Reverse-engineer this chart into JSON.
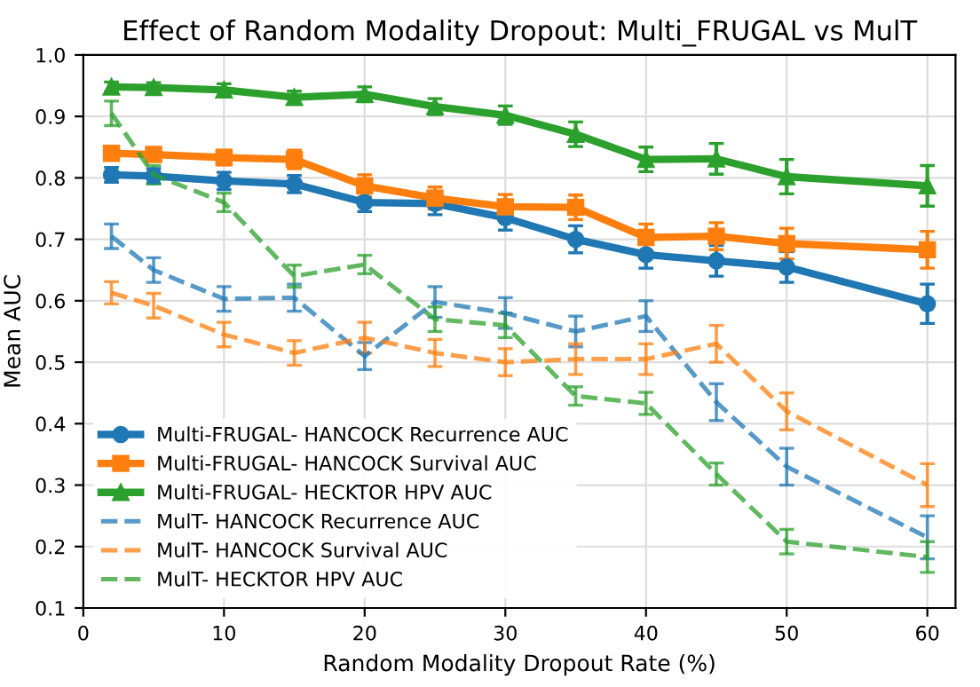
{
  "chart_data": {
    "type": "line",
    "title": "Effect of Random Modality Dropout: Multi_FRUGAL vs MulT",
    "xlabel": "Random Modality Dropout Rate (%)",
    "ylabel": "Mean AUC",
    "x": [
      2,
      5,
      10,
      15,
      20,
      25,
      30,
      35,
      40,
      45,
      50,
      60
    ],
    "series": [
      {
        "name": "Multi-FRUGAL- HANCOCK Recurrence AUC",
        "color": "#1f77b4",
        "marker": "circle",
        "line_style": "solid",
        "values": [
          0.805,
          0.803,
          0.795,
          0.79,
          0.76,
          0.758,
          0.735,
          0.7,
          0.675,
          0.665,
          0.655,
          0.595
        ],
        "errors": [
          0.012,
          0.012,
          0.014,
          0.014,
          0.015,
          0.018,
          0.02,
          0.022,
          0.022,
          0.025,
          0.025,
          0.032
        ]
      },
      {
        "name": "Multi-FRUGAL- HANCOCK Survival AUC",
        "color": "#ff7f0e",
        "marker": "square",
        "line_style": "solid",
        "values": [
          0.84,
          0.838,
          0.833,
          0.83,
          0.787,
          0.767,
          0.753,
          0.752,
          0.703,
          0.705,
          0.693,
          0.683
        ],
        "errors": [
          0.01,
          0.01,
          0.012,
          0.015,
          0.018,
          0.018,
          0.02,
          0.02,
          0.022,
          0.022,
          0.025,
          0.03
        ]
      },
      {
        "name": "Multi-FRUGAL- HECKTOR HPV AUC",
        "color": "#2ca02c",
        "marker": "triangle",
        "line_style": "solid",
        "values": [
          0.948,
          0.947,
          0.943,
          0.931,
          0.936,
          0.916,
          0.902,
          0.871,
          0.83,
          0.831,
          0.802,
          0.787
        ],
        "errors": [
          0.008,
          0.008,
          0.01,
          0.01,
          0.012,
          0.013,
          0.015,
          0.02,
          0.02,
          0.025,
          0.028,
          0.033
        ]
      },
      {
        "name": "MulT- HANCOCK Recurrence AUC",
        "color": "#1f77b4",
        "marker": "none",
        "line_style": "dashed",
        "values": [
          0.705,
          0.65,
          0.603,
          0.605,
          0.51,
          0.598,
          0.58,
          0.55,
          0.575,
          0.435,
          0.33,
          0.215
        ],
        "errors": [
          0.02,
          0.02,
          0.02,
          0.022,
          0.022,
          0.025,
          0.025,
          0.025,
          0.025,
          0.03,
          0.03,
          0.035
        ]
      },
      {
        "name": "MulT- HANCOCK Survival AUC",
        "color": "#ff7f0e",
        "marker": "none",
        "line_style": "dashed",
        "values": [
          0.613,
          0.592,
          0.545,
          0.515,
          0.54,
          0.515,
          0.5,
          0.505,
          0.505,
          0.53,
          0.42,
          0.3
        ],
        "errors": [
          0.018,
          0.02,
          0.02,
          0.02,
          0.025,
          0.022,
          0.022,
          0.025,
          0.025,
          0.03,
          0.03,
          0.035
        ]
      },
      {
        "name": "MulT- HECKTOR HPV AUC",
        "color": "#2ca02c",
        "marker": "none",
        "line_style": "dashed",
        "values": [
          0.905,
          0.805,
          0.76,
          0.64,
          0.659,
          0.57,
          0.56,
          0.445,
          0.433,
          0.318,
          0.208,
          0.183
        ],
        "errors": [
          0.02,
          0.015,
          0.015,
          0.018,
          0.015,
          0.02,
          0.02,
          0.015,
          0.018,
          0.018,
          0.02,
          0.025
        ]
      }
    ],
    "xlim": [
      0,
      62
    ],
    "xticks": [
      0,
      10,
      20,
      30,
      40,
      50,
      60
    ],
    "ylim": [
      0.1,
      1.0
    ],
    "yticks": [
      0.1,
      0.2,
      0.3,
      0.4,
      0.5,
      0.6,
      0.7,
      0.8,
      0.9,
      {
        "value": 1.0,
        "label": "1.0"
      }
    ],
    "grid": true,
    "legend": "bottom left"
  }
}
